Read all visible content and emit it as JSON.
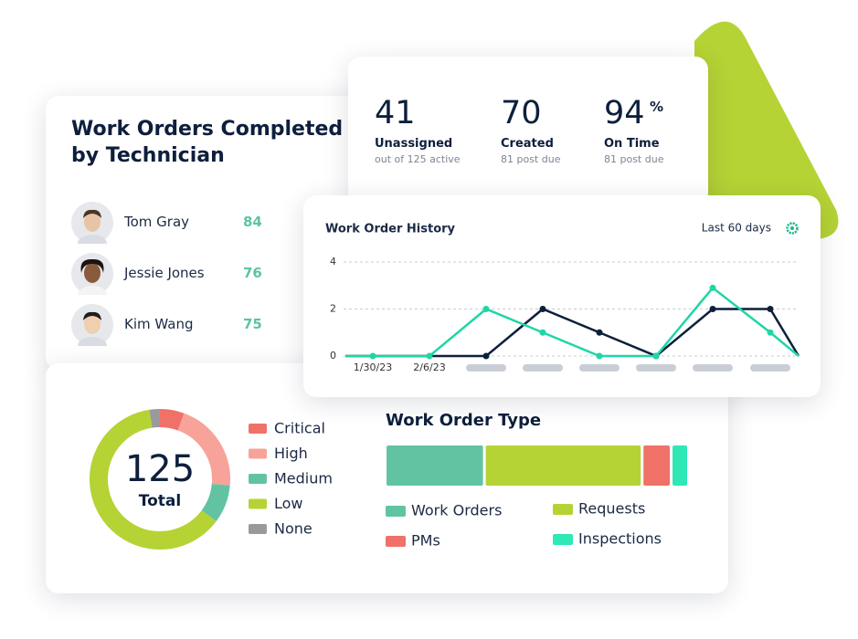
{
  "technicians": {
    "title": "Work Orders Completed by Technician",
    "rows": [
      {
        "name": "Tom Gray",
        "value": 84
      },
      {
        "name": "Jessie Jones",
        "value": 76
      },
      {
        "name": "Kim Wang",
        "value": 75
      }
    ]
  },
  "stats": [
    {
      "value": 41,
      "label": "Unassigned",
      "sub": "out of 125 active"
    },
    {
      "value": 70,
      "label": "Created",
      "sub": "81 post due"
    },
    {
      "value": 94,
      "unit": "%",
      "label": "On Time",
      "sub": "81 post due"
    }
  ],
  "history": {
    "type": "line",
    "title": "Work Order History",
    "range_label": "Last 60 days",
    "categories": [
      null,
      "1/30/23",
      "2/6/23",
      null,
      null,
      null,
      null,
      null,
      null,
      null
    ],
    "series": [
      {
        "color": "#0d1f3c",
        "values": [
          0,
          0,
          0,
          0,
          2,
          1,
          0,
          2,
          2,
          0
        ]
      },
      {
        "color": "#1fd6a6",
        "values": [
          0,
          0,
          0,
          2,
          1,
          0,
          0,
          2.9,
          1,
          0
        ]
      }
    ],
    "ylim": [
      0,
      4
    ],
    "yticks": [
      0,
      2,
      4
    ],
    "grid": true
  },
  "priority": {
    "type": "pie",
    "total": 125,
    "total_label": "Total",
    "series": [
      {
        "name": "Critical",
        "color": "#f07167",
        "value": 7
      },
      {
        "name": "High",
        "color": "#f7a39a",
        "value": 26
      },
      {
        "name": "Medium",
        "color": "#62c3a2",
        "value": 11
      },
      {
        "name": "Low",
        "color": "#b5d335",
        "value": 78
      },
      {
        "name": "None",
        "color": "#9a9a9a",
        "value": 3
      }
    ]
  },
  "work_order_type": {
    "type": "bar",
    "title": "Work Order Type",
    "series": [
      {
        "name": "Work Orders",
        "color": "#62c3a2",
        "value": 33
      },
      {
        "name": "Requests",
        "color": "#b5d335",
        "value": 53
      },
      {
        "name": "PMs",
        "color": "#f07167",
        "value": 9
      },
      {
        "name": "Inspections",
        "color": "#2ee8b6",
        "value": 5
      }
    ]
  }
}
